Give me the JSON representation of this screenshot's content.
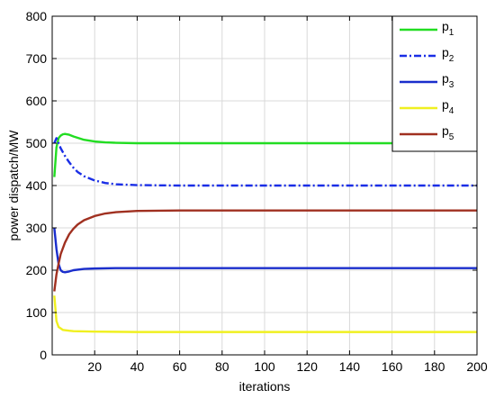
{
  "chart_data": {
    "type": "line",
    "xlabel": "iterations",
    "ylabel": "power dispatch/MW",
    "xlim": [
      0,
      200
    ],
    "ylim": [
      0,
      800
    ],
    "xticks": [
      20,
      40,
      60,
      80,
      100,
      120,
      140,
      160,
      180,
      200
    ],
    "yticks": [
      0,
      100,
      200,
      300,
      400,
      500,
      600,
      700,
      800
    ],
    "grid": true,
    "legend_position": "top-right",
    "series": [
      {
        "name": "p",
        "sub": "1",
        "color": "#22dd22",
        "dash": "solid",
        "points": [
          [
            1,
            420
          ],
          [
            2,
            490
          ],
          [
            3,
            512
          ],
          [
            4,
            518
          ],
          [
            5,
            521
          ],
          [
            6,
            522
          ],
          [
            8,
            520
          ],
          [
            10,
            516
          ],
          [
            15,
            508
          ],
          [
            20,
            504
          ],
          [
            25,
            502
          ],
          [
            30,
            501
          ],
          [
            40,
            500
          ],
          [
            60,
            500
          ],
          [
            100,
            500
          ],
          [
            150,
            500
          ],
          [
            200,
            500
          ]
        ]
      },
      {
        "name": "p",
        "sub": "2",
        "color": "#1a2ee6",
        "dash": "dashdot",
        "points": [
          [
            1,
            500
          ],
          [
            2,
            512
          ],
          [
            3,
            500
          ],
          [
            4,
            488
          ],
          [
            6,
            470
          ],
          [
            8,
            455
          ],
          [
            10,
            442
          ],
          [
            12,
            432
          ],
          [
            15,
            422
          ],
          [
            20,
            412
          ],
          [
            25,
            406
          ],
          [
            30,
            403
          ],
          [
            40,
            401
          ],
          [
            60,
            400
          ],
          [
            100,
            400
          ],
          [
            150,
            400
          ],
          [
            200,
            400
          ]
        ]
      },
      {
        "name": "p",
        "sub": "3",
        "color": "#1a2ecc",
        "dash": "solid",
        "points": [
          [
            1,
            300
          ],
          [
            2,
            250
          ],
          [
            3,
            215
          ],
          [
            4,
            200
          ],
          [
            5,
            196
          ],
          [
            6,
            195
          ],
          [
            8,
            197
          ],
          [
            10,
            200
          ],
          [
            15,
            203
          ],
          [
            20,
            204
          ],
          [
            30,
            205
          ],
          [
            40,
            205
          ],
          [
            100,
            205
          ],
          [
            150,
            205
          ],
          [
            200,
            205
          ]
        ]
      },
      {
        "name": "p",
        "sub": "4",
        "color": "#f0f020",
        "dash": "solid",
        "points": [
          [
            1,
            140
          ],
          [
            2,
            80
          ],
          [
            3,
            66
          ],
          [
            5,
            59
          ],
          [
            8,
            57
          ],
          [
            10,
            56
          ],
          [
            20,
            55
          ],
          [
            40,
            54
          ],
          [
            100,
            54
          ],
          [
            200,
            54
          ]
        ]
      },
      {
        "name": "p",
        "sub": "5",
        "color": "#a03020",
        "dash": "solid",
        "points": [
          [
            1,
            150
          ],
          [
            2,
            190
          ],
          [
            3,
            215
          ],
          [
            4,
            238
          ],
          [
            6,
            265
          ],
          [
            8,
            285
          ],
          [
            10,
            298
          ],
          [
            12,
            308
          ],
          [
            15,
            318
          ],
          [
            20,
            328
          ],
          [
            25,
            334
          ],
          [
            30,
            337
          ],
          [
            40,
            340
          ],
          [
            60,
            341
          ],
          [
            100,
            341
          ],
          [
            150,
            341
          ],
          [
            200,
            341
          ]
        ]
      }
    ]
  }
}
